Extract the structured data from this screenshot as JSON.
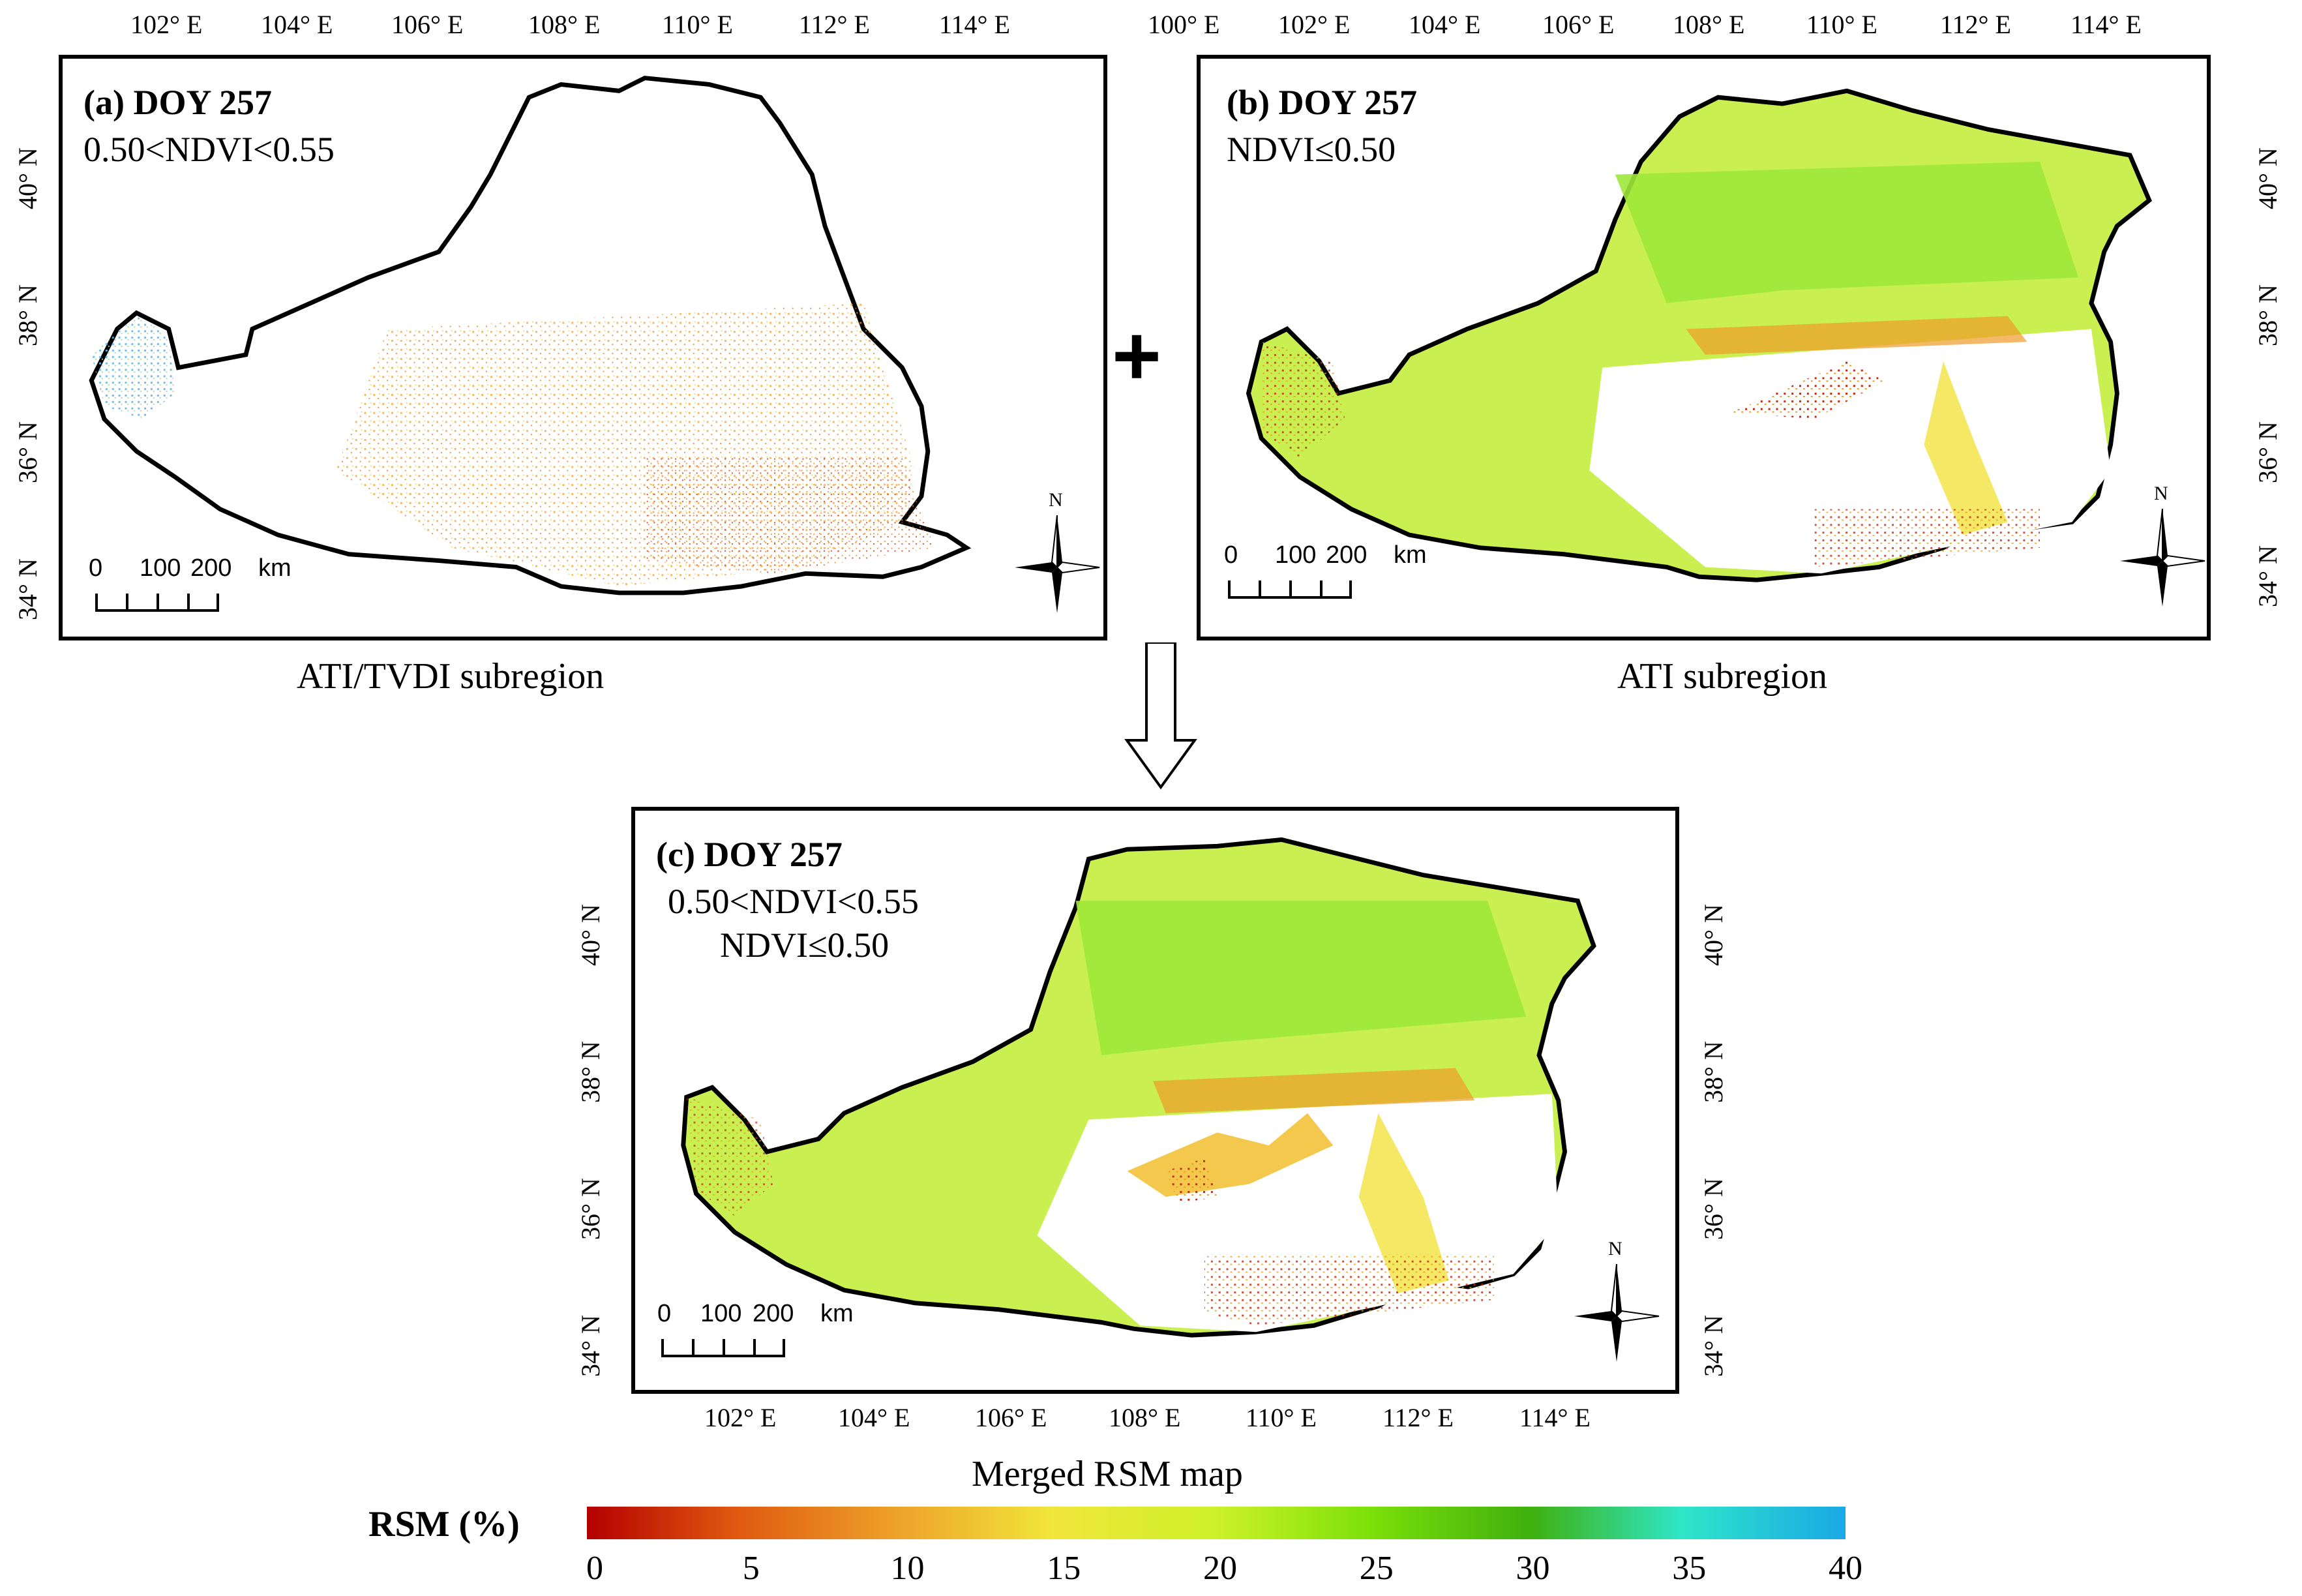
{
  "panels": {
    "a": {
      "title": "(a) DOY 257",
      "subtitle": "0.50<NDVI<0.55",
      "caption": "ATI/TVDI subregion",
      "lon_ticks": [
        "102° E",
        "104° E",
        "106° E",
        "108° E",
        "110° E",
        "112° E",
        "114° E"
      ],
      "lat_ticks": [
        "40° N",
        "38° N",
        "36° N",
        "34° N"
      ]
    },
    "b": {
      "title": "(b) DOY 257",
      "subtitle": "NDVI≤0.50",
      "caption": "ATI subregion",
      "lon_ticks": [
        "100° E",
        "102° E",
        "104° E",
        "106° E",
        "108° E",
        "110° E",
        "112° E",
        "114° E"
      ],
      "lat_ticks": [
        "40° N",
        "38° N",
        "36° N",
        "34° N"
      ]
    },
    "c": {
      "title": "(c) DOY 257",
      "subtitle_line1": "0.50<NDVI<0.55",
      "subtitle_line2": "NDVI≤0.50",
      "caption": "Merged RSM map",
      "lon_ticks": [
        "102° E",
        "104° E",
        "106° E",
        "108° E",
        "110° E",
        "112° E",
        "114° E"
      ],
      "lat_ticks_left": [
        "40° N",
        "38° N",
        "36° N",
        "34° N"
      ],
      "lat_ticks_right": [
        "40° N",
        "38° N",
        "36° N",
        "34° N"
      ]
    }
  },
  "scale": {
    "zero": "0",
    "mid": "100",
    "end": "200",
    "unit": "km"
  },
  "compass": {
    "north": "N"
  },
  "operators": {
    "plus": "+"
  },
  "legend": {
    "title": "RSM (%)",
    "ticks": [
      "0",
      "5",
      "10",
      "15",
      "20",
      "25",
      "30",
      "35",
      "40"
    ],
    "min": 0,
    "max": 40,
    "colors": {
      "low": "#b40000",
      "mid_low": "#eda42a",
      "mid": "#cdf12a",
      "mid_high": "#3fb00d",
      "high": "#1aa8e6"
    }
  }
}
